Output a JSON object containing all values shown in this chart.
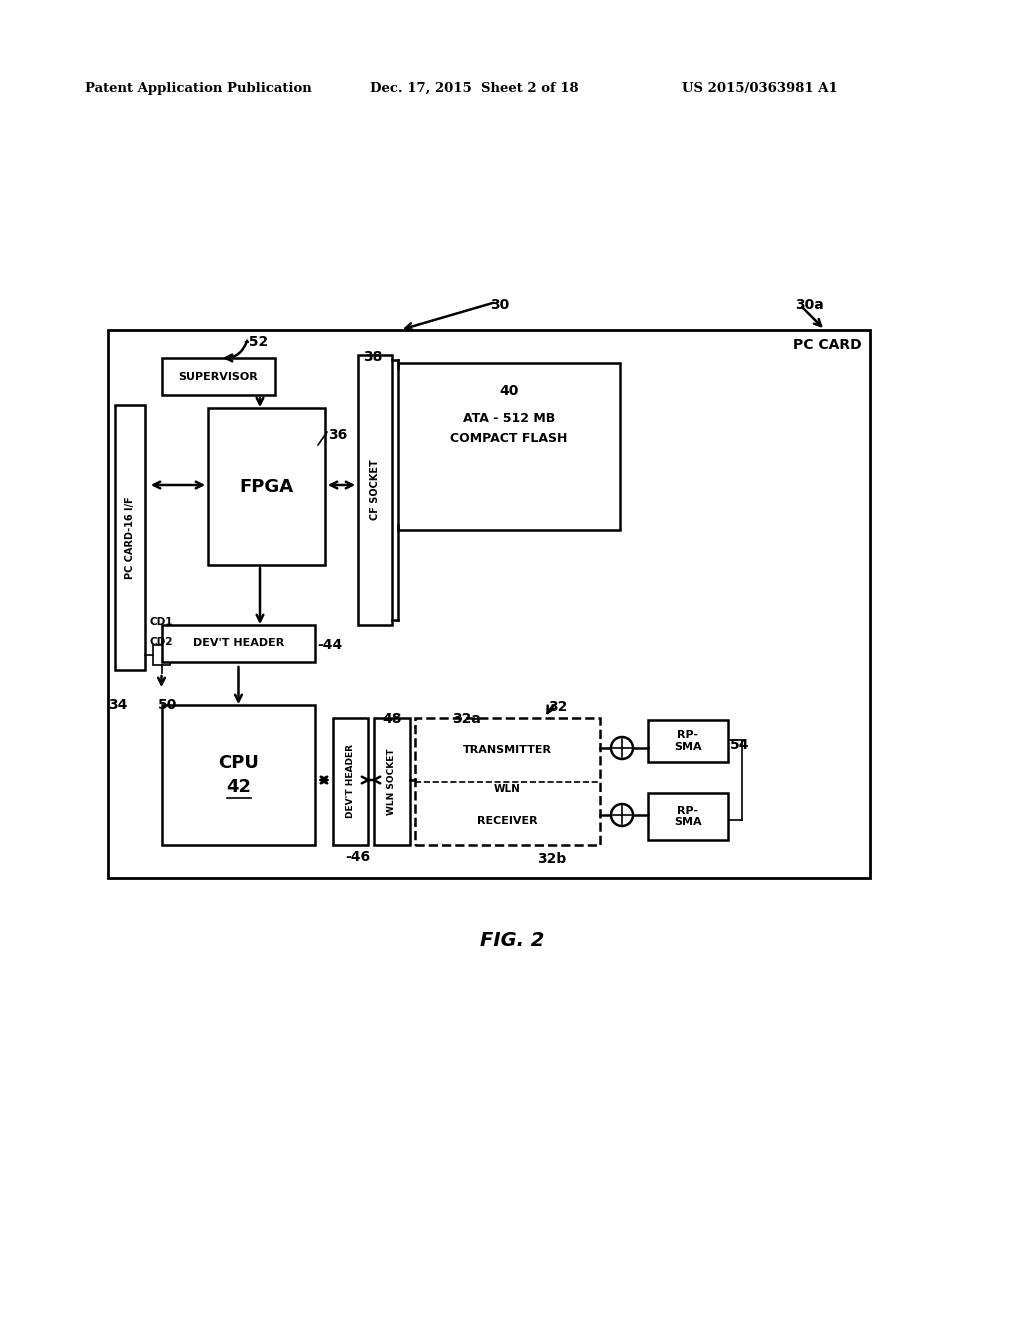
{
  "bg_color": "#ffffff",
  "text_color": "#000000",
  "header_text": "Patent Application Publication",
  "header_date": "Dec. 17, 2015  Sheet 2 of 18",
  "header_patent": "US 2015/0363981 A1",
  "fig_label": "FIG. 2",
  "title_note": "PC CARD",
  "lw": 1.8,
  "lw_thin": 1.2
}
